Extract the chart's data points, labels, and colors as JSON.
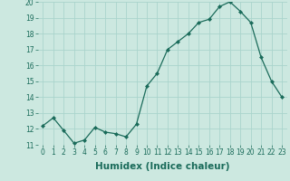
{
  "x": [
    0,
    1,
    2,
    3,
    4,
    5,
    6,
    7,
    8,
    9,
    10,
    11,
    12,
    13,
    14,
    15,
    16,
    17,
    18,
    19,
    20,
    21,
    22,
    23
  ],
  "y": [
    12.2,
    12.7,
    11.9,
    11.1,
    11.3,
    12.1,
    11.8,
    11.7,
    11.5,
    12.3,
    14.7,
    15.5,
    17.0,
    17.5,
    18.0,
    18.7,
    18.9,
    19.7,
    20.0,
    19.4,
    18.7,
    16.5,
    15.0,
    14.0
  ],
  "xlabel": "Humidex (Indice chaleur)",
  "ylim": [
    11,
    20
  ],
  "xlim": [
    -0.5,
    23.5
  ],
  "yticks": [
    11,
    12,
    13,
    14,
    15,
    16,
    17,
    18,
    19,
    20
  ],
  "xticks": [
    0,
    1,
    2,
    3,
    4,
    5,
    6,
    7,
    8,
    9,
    10,
    11,
    12,
    13,
    14,
    15,
    16,
    17,
    18,
    19,
    20,
    21,
    22,
    23
  ],
  "line_color": "#1a6b5a",
  "marker_color": "#1a6b5a",
  "bg_color": "#cce8e0",
  "grid_color": "#aad4cc",
  "tick_label_fontsize": 5.5,
  "xlabel_fontsize": 7.5
}
